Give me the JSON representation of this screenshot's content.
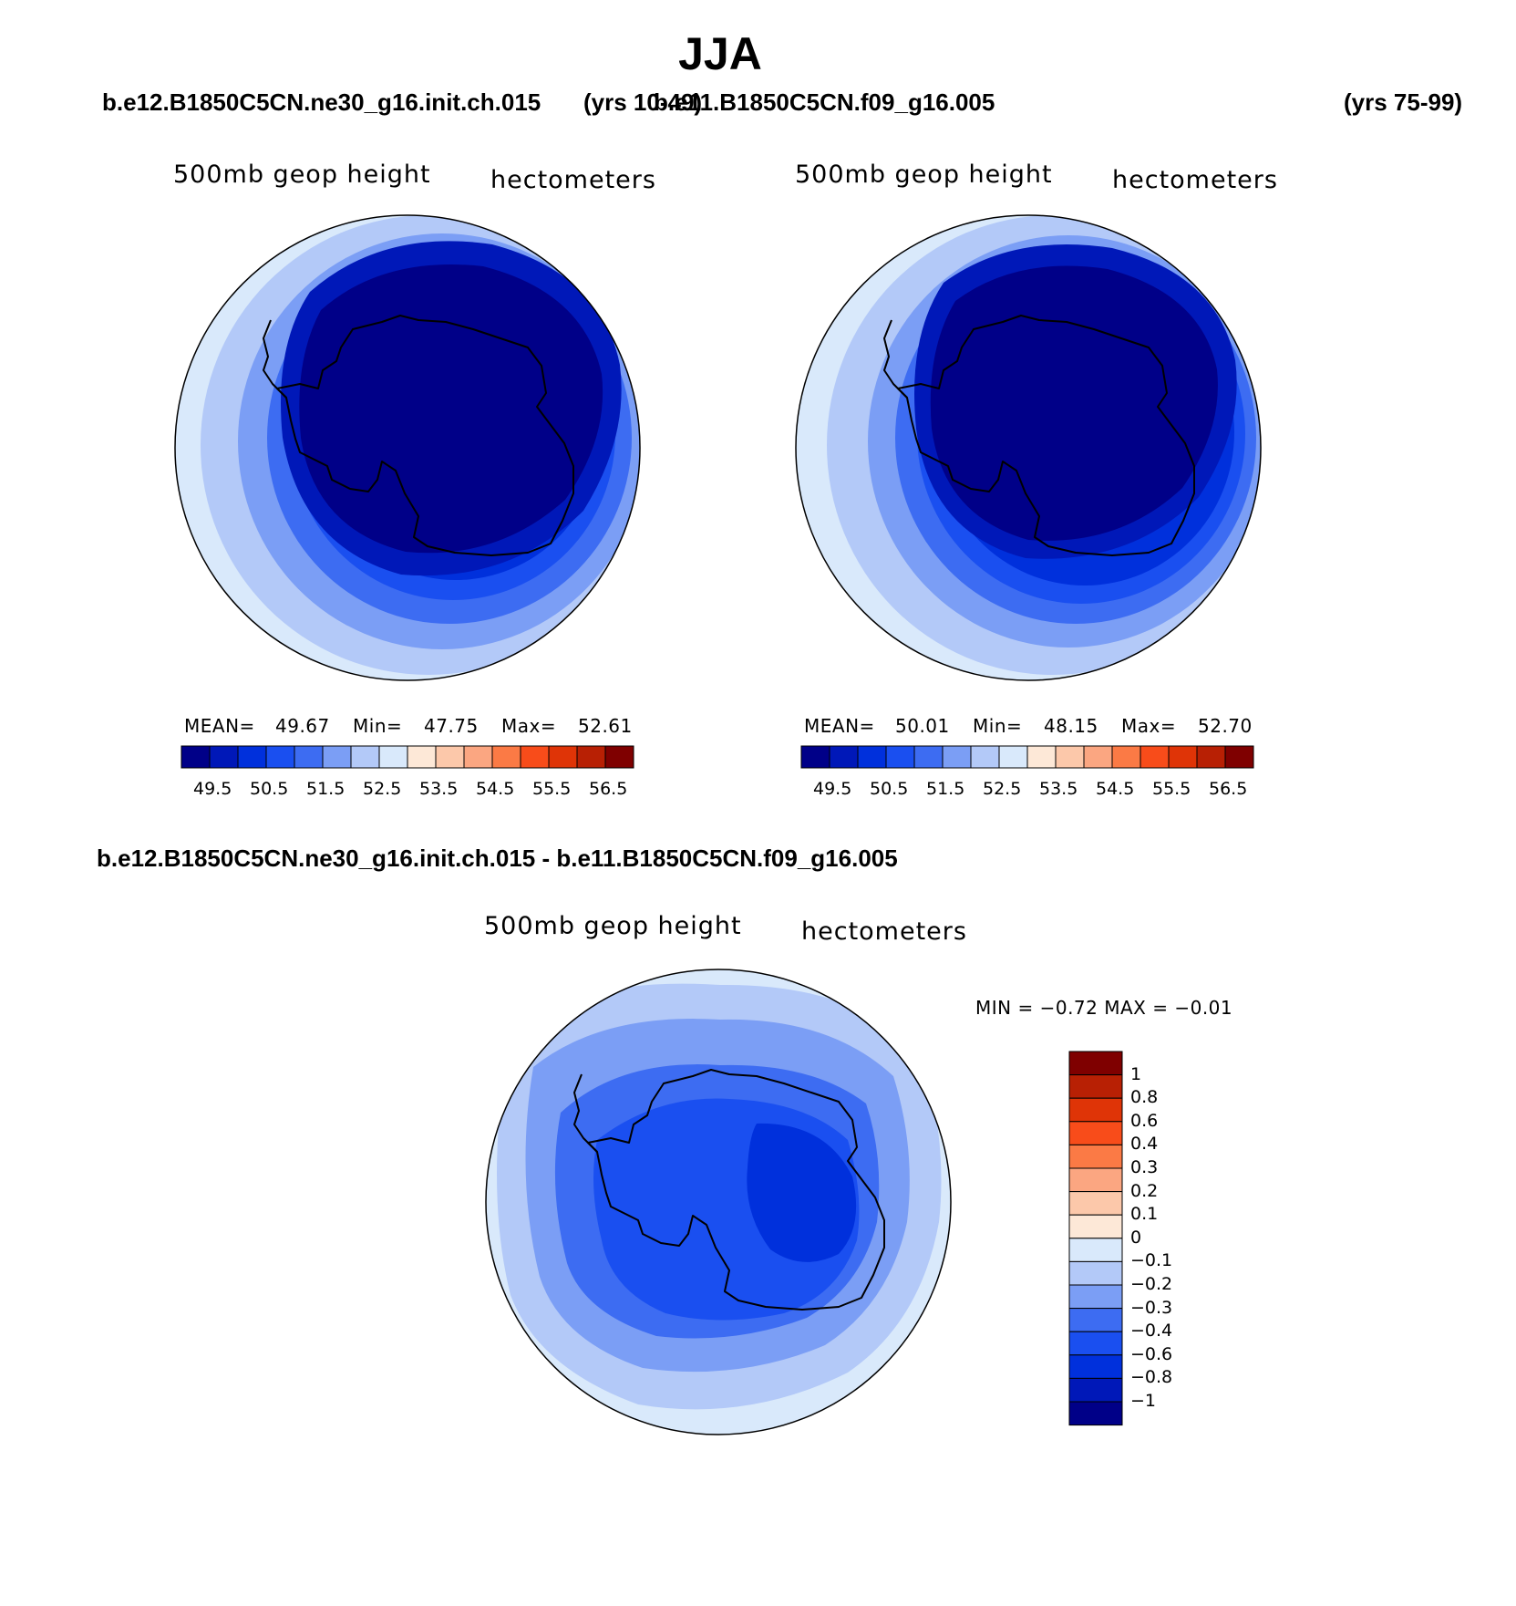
{
  "season": "JJA",
  "headers": {
    "left_case": "b.e12.B1850C5CN.ne30_g16.init.ch.015",
    "left_years": "(yrs 10-49)",
    "right_case": "b.e11.B1850C5CN.f09_g16.005",
    "right_years": "(yrs 75-99)"
  },
  "panels": [
    {
      "variable": "500mb geop height",
      "units": "hectometers",
      "stats": {
        "mean_label": "MEAN=",
        "mean": "49.67",
        "min_label": "Min=",
        "min": "47.75",
        "max_label": "Max=",
        "max": "52.61"
      }
    },
    {
      "variable": "500mb geop height",
      "units": "hectometers",
      "stats": {
        "mean_label": "MEAN=",
        "mean": "50.01",
        "min_label": "Min=",
        "min": "48.15",
        "max_label": "Max=",
        "max": "52.70"
      }
    }
  ],
  "shared_colorbar": {
    "labels": [
      "49.5",
      "50.5",
      "51.5",
      "52.5",
      "53.5",
      "54.5",
      "55.5",
      "56.5"
    ],
    "colors": [
      "#000088",
      "#0018b8",
      "#0030dc",
      "#1a4ff0",
      "#3d6cf2",
      "#7b9ef5",
      "#b3c9f8",
      "#d9e9fb",
      "#fde8d7",
      "#fcc8aa",
      "#fba681",
      "#fb7a45",
      "#f84c1a",
      "#df3407",
      "#b82004",
      "#7f0000"
    ]
  },
  "difference": {
    "title": "b.e12.B1850C5CN.ne30_g16.init.ch.015 - b.e11.B1850C5CN.f09_g16.005",
    "variable": "500mb geop height",
    "units": "hectometers",
    "stats_text": "MIN =  −0.72 MAX =  −0.01",
    "colorbar_labels": [
      "1",
      "0.8",
      "0.6",
      "0.4",
      "0.3",
      "0.2",
      "0.1",
      "0",
      "−0.1",
      "−0.2",
      "−0.3",
      "−0.4",
      "−0.6",
      "−0.8",
      "−1"
    ],
    "colorbar_colors": [
      "#7f0000",
      "#b82004",
      "#df3407",
      "#f84c1a",
      "#fb7a45",
      "#fba681",
      "#fcc8aa",
      "#fde8d7",
      "#d9e9fb",
      "#b3c9f8",
      "#7b9ef5",
      "#3d6cf2",
      "#1a4ff0",
      "#0030dc",
      "#0018b8",
      "#000088"
    ]
  }
}
